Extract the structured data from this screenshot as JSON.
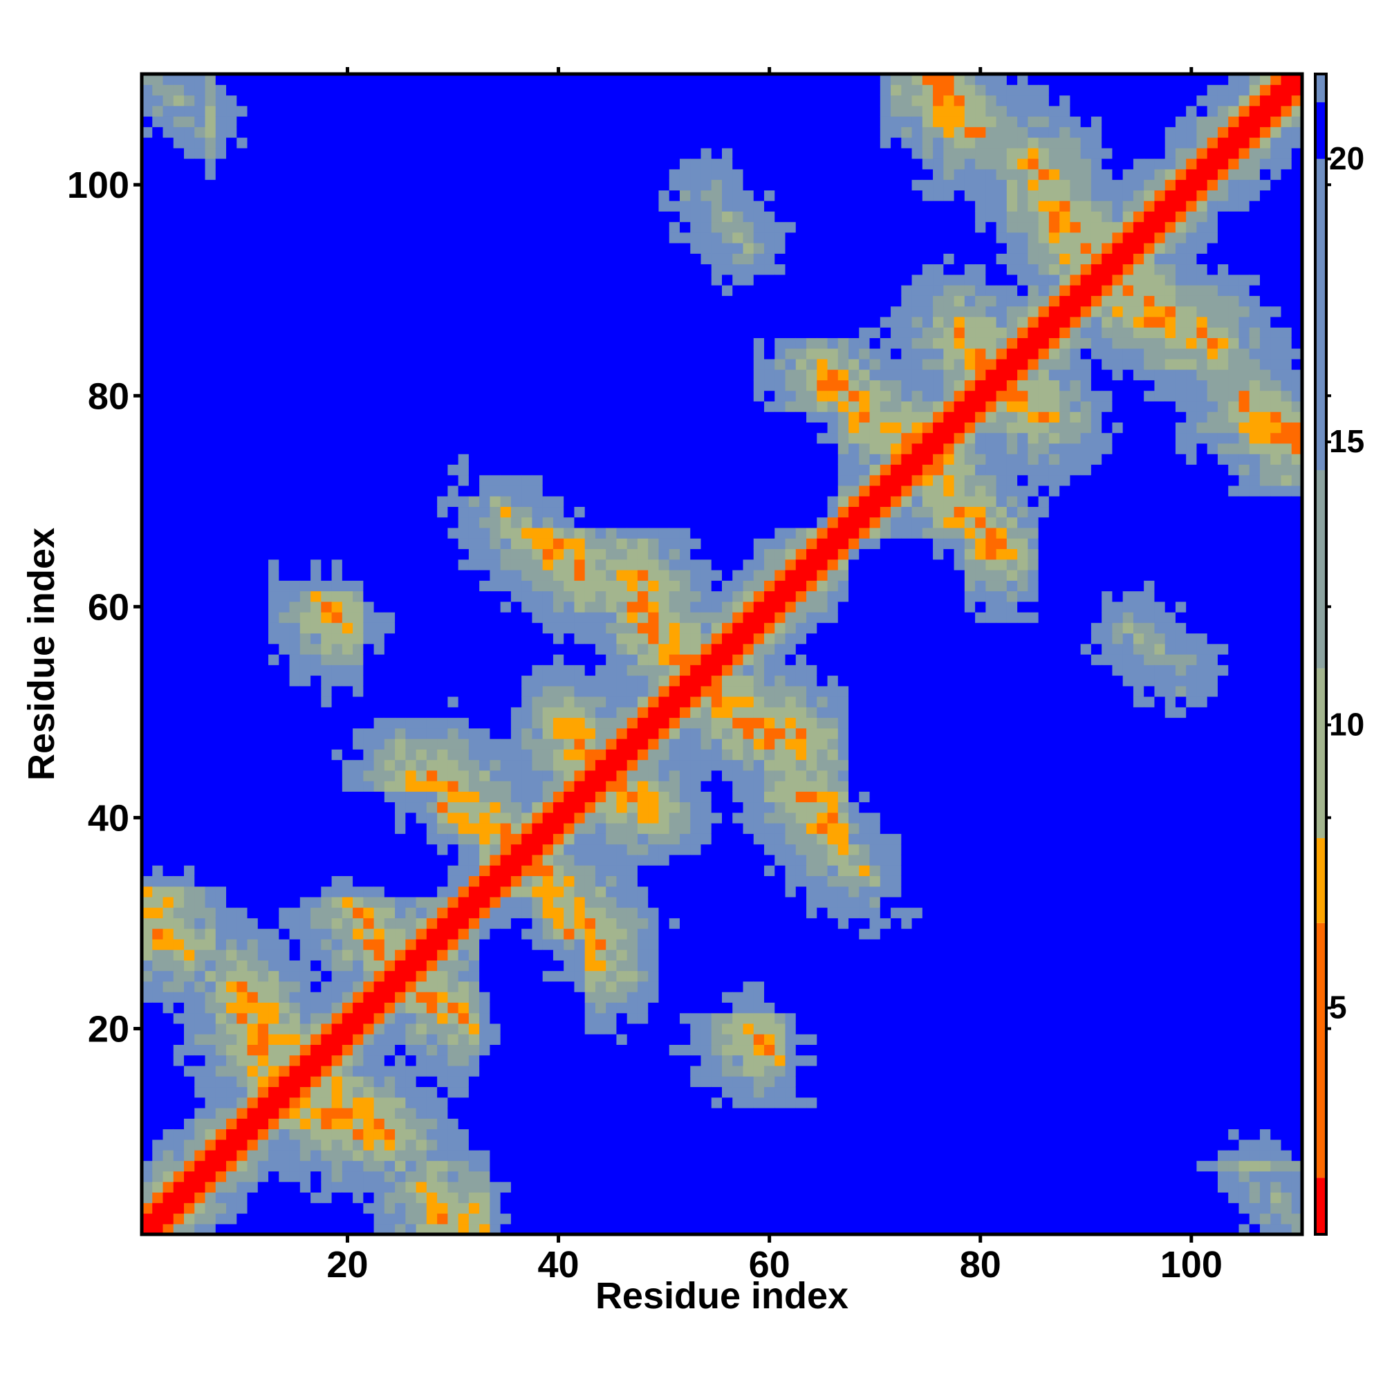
{
  "chart_data": {
    "type": "heatmap",
    "title": "",
    "xlabel": "Residue index",
    "ylabel": "Residue index",
    "n_residues": 110,
    "xlim": [
      1,
      110
    ],
    "ylim": [
      1,
      110
    ],
    "x_ticks": [
      20,
      40,
      60,
      80,
      100
    ],
    "y_ticks": [
      20,
      40,
      60,
      80,
      100
    ],
    "colorbar": {
      "ticks": [
        5,
        10,
        15,
        20
      ],
      "range": [
        1,
        21.5
      ],
      "colors": {
        "contact_diag": "#ff0000",
        "contact_close": "#ff6a00",
        "contact_mid": "#ffa500",
        "near": "#a3b58e",
        "medium": "#8ca3a0",
        "far": "#6f8fc2",
        "very_far": "#0000ff"
      }
    },
    "cutoff_distance": 20,
    "contact_segments": [
      {
        "from": [
          1,
          30
        ],
        "to": [
          4,
          28
        ]
      },
      {
        "from": [
          2,
          109
        ],
        "to": [
          6,
          106
        ]
      },
      {
        "from": [
          10,
          24
        ],
        "to": [
          14,
          18
        ]
      },
      {
        "from": [
          15,
          13
        ],
        "to": [
          22,
          10
        ]
      },
      {
        "from": [
          26,
          44
        ],
        "to": [
          33,
          38
        ]
      },
      {
        "from": [
          28,
          23
        ],
        "to": [
          31,
          21
        ]
      },
      {
        "from": [
          30,
          1
        ],
        "to": [
          32,
          2
        ]
      },
      {
        "from": [
          38,
          35
        ],
        "to": [
          44,
          28
        ]
      },
      {
        "from": [
          36,
          69
        ],
        "to": [
          40,
          65
        ]
      },
      {
        "from": [
          41,
          48
        ],
        "to": [
          45,
          43
        ]
      },
      {
        "from": [
          47,
          62
        ],
        "to": [
          50,
          56
        ]
      },
      {
        "from": [
          55,
          52
        ],
        "to": [
          63,
          47
        ]
      },
      {
        "from": [
          54,
          99
        ],
        "to": [
          58,
          95
        ]
      },
      {
        "from": [
          58,
          20
        ],
        "to": [
          60,
          18
        ]
      },
      {
        "from": [
          63,
          43
        ],
        "to": [
          68,
          37
        ]
      },
      {
        "from": [
          65,
          82
        ],
        "to": [
          73,
          76
        ]
      },
      {
        "from": [
          75,
          73
        ],
        "to": [
          81,
          66
        ]
      },
      {
        "from": [
          75,
          110
        ],
        "to": [
          78,
          106
        ]
      },
      {
        "from": [
          78,
          86
        ],
        "to": [
          82,
          82
        ]
      },
      {
        "from": [
          85,
          102
        ],
        "to": [
          90,
          94
        ]
      },
      {
        "from": [
          92,
          90
        ],
        "to": [
          99,
          86
        ]
      },
      {
        "from": [
          94,
          58
        ],
        "to": [
          97,
          55
        ]
      },
      {
        "from": [
          105,
          79
        ],
        "to": [
          110,
          76
        ]
      },
      {
        "from": [
          106,
          6
        ],
        "to": [
          110,
          2
        ]
      }
    ],
    "far_regions": [
      {
        "x": [
          1,
          14
        ],
        "y": [
          34,
          43
        ]
      },
      {
        "x": [
          11,
          32
        ],
        "y": [
          33,
          38
        ]
      },
      {
        "x": [
          22,
          28
        ],
        "y": [
          50,
          85
        ]
      },
      {
        "x": [
          32,
          52
        ],
        "y": [
          71,
          85
        ]
      },
      {
        "x": [
          38,
          60
        ],
        "y": [
          71,
          77
        ]
      },
      {
        "x": [
          22,
          40
        ],
        "y": [
          86,
          108
        ]
      },
      {
        "x": [
          44,
          68
        ],
        "y": [
          86,
          108
        ]
      },
      {
        "x": [
          1,
          6
        ],
        "y": [
          83,
          110
        ]
      },
      {
        "x": [
          34,
          42
        ],
        "y": [
          2,
          28
        ]
      },
      {
        "x": [
          42,
          68
        ],
        "y": [
          2,
          12
        ]
      },
      {
        "x": [
          62,
          86
        ],
        "y": [
          14,
          27
        ]
      },
      {
        "x": [
          68,
          80
        ],
        "y": [
          2,
          12
        ]
      },
      {
        "x": [
          68,
          78
        ],
        "y": [
          36,
          66
        ]
      },
      {
        "x": [
          76,
          90
        ],
        "y": [
          34,
          48
        ]
      },
      {
        "x": [
          90,
          110
        ],
        "y": [
          8,
          50
        ]
      },
      {
        "x": [
          100,
          110
        ],
        "y": [
          53,
          70
        ]
      },
      {
        "x": [
          6,
          10
        ],
        "y": [
          44,
          53
        ]
      },
      {
        "x": [
          2,
          6
        ],
        "y": [
          58,
          66
        ]
      },
      {
        "x": [
          52,
          62
        ],
        "y": [
          88,
          108
        ]
      }
    ]
  }
}
